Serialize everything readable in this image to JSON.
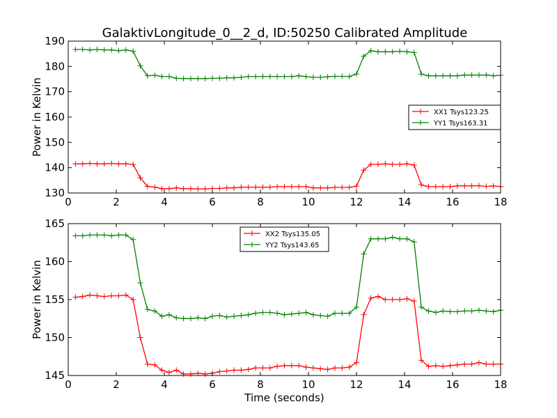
{
  "figure": {
    "title": "GalaktivLongitude_0__2_d, ID:50250 Calibrated Amplitude"
  },
  "chart_data": [
    {
      "type": "line",
      "title": "GalaktivLongitude_0__2_d, ID:50250 Calibrated Amplitude",
      "xlabel": "",
      "ylabel": "Power in Kelvin",
      "xlim": [
        0,
        18
      ],
      "ylim": [
        130,
        190
      ],
      "xticks": [
        0,
        2,
        4,
        6,
        8,
        10,
        12,
        14,
        16,
        18
      ],
      "yticks": [
        130,
        140,
        150,
        160,
        170,
        180,
        190
      ],
      "grid": false,
      "legend_position": "center-right",
      "x": [
        0.3,
        0.6,
        0.9,
        1.2,
        1.5,
        1.8,
        2.1,
        2.4,
        2.7,
        3.0,
        3.3,
        3.6,
        3.9,
        4.2,
        4.5,
        4.8,
        5.1,
        5.4,
        5.7,
        6.0,
        6.3,
        6.6,
        6.9,
        7.2,
        7.5,
        7.8,
        8.1,
        8.4,
        8.7,
        9.0,
        9.3,
        9.6,
        9.9,
        10.2,
        10.5,
        10.8,
        11.1,
        11.4,
        11.7,
        12.0,
        12.3,
        12.6,
        12.9,
        13.2,
        13.5,
        13.8,
        14.1,
        14.4,
        14.7,
        15.0,
        15.3,
        15.6,
        15.9,
        16.2,
        16.5,
        16.8,
        17.1,
        17.4,
        17.7,
        18.0
      ],
      "series": [
        {
          "name": "XX1 Tsys123.25",
          "color": "#ff0000",
          "values": [
            141.5,
            141.5,
            141.7,
            141.5,
            141.5,
            141.7,
            141.5,
            141.5,
            141.3,
            136.0,
            132.6,
            132.3,
            131.7,
            131.7,
            132.0,
            131.7,
            131.7,
            131.6,
            131.6,
            131.8,
            131.8,
            132.0,
            132.0,
            132.3,
            132.3,
            132.3,
            132.3,
            132.3,
            132.5,
            132.5,
            132.5,
            132.5,
            132.5,
            132.0,
            132.0,
            132.0,
            132.2,
            132.2,
            132.2,
            132.7,
            139.0,
            141.3,
            141.3,
            141.5,
            141.3,
            141.3,
            141.5,
            141.0,
            133.2,
            132.5,
            132.5,
            132.5,
            132.5,
            132.8,
            132.8,
            132.8,
            132.9,
            132.6,
            132.8,
            132.5
          ]
        },
        {
          "name": "YY1 Tsys163.31",
          "color": "#008000",
          "values": [
            186.7,
            186.7,
            186.5,
            186.7,
            186.5,
            186.5,
            186.2,
            186.5,
            186.0,
            180.2,
            176.3,
            176.5,
            176.0,
            176.0,
            175.3,
            175.2,
            175.2,
            175.2,
            175.2,
            175.3,
            175.3,
            175.5,
            175.5,
            175.7,
            176.0,
            176.0,
            176.0,
            176.0,
            176.0,
            176.0,
            176.0,
            176.3,
            176.0,
            175.7,
            175.7,
            175.9,
            176.1,
            176.1,
            176.0,
            177.0,
            184.0,
            186.2,
            185.8,
            185.8,
            185.8,
            186.0,
            185.8,
            185.5,
            177.0,
            176.3,
            176.3,
            176.3,
            176.3,
            176.3,
            176.6,
            176.6,
            176.6,
            176.6,
            176.3,
            176.5
          ]
        }
      ]
    },
    {
      "type": "line",
      "title": "",
      "xlabel": "Time (seconds)",
      "ylabel": "Power in Kelvin",
      "xlim": [
        0,
        18
      ],
      "ylim": [
        145,
        165
      ],
      "xticks": [
        0,
        2,
        4,
        6,
        8,
        10,
        12,
        14,
        16,
        18
      ],
      "yticks": [
        145,
        150,
        155,
        160,
        165
      ],
      "grid": false,
      "legend_position": "top-center",
      "x": [
        0.3,
        0.6,
        0.9,
        1.2,
        1.5,
        1.8,
        2.1,
        2.4,
        2.7,
        3.0,
        3.3,
        3.6,
        3.9,
        4.2,
        4.5,
        4.8,
        5.1,
        5.4,
        5.7,
        6.0,
        6.3,
        6.6,
        6.9,
        7.2,
        7.5,
        7.8,
        8.1,
        8.4,
        8.7,
        9.0,
        9.3,
        9.6,
        9.9,
        10.2,
        10.5,
        10.8,
        11.1,
        11.4,
        11.7,
        12.0,
        12.3,
        12.6,
        12.9,
        13.2,
        13.5,
        13.8,
        14.1,
        14.4,
        14.7,
        15.0,
        15.3,
        15.6,
        15.9,
        16.2,
        16.5,
        16.8,
        17.1,
        17.4,
        17.7,
        18.0
      ],
      "series": [
        {
          "name": "XX2 Tsys135.05",
          "color": "#ff0000",
          "values": [
            155.3,
            155.4,
            155.6,
            155.5,
            155.4,
            155.5,
            155.5,
            155.6,
            155.0,
            150.0,
            146.5,
            146.4,
            145.7,
            145.4,
            145.7,
            145.2,
            145.2,
            145.3,
            145.2,
            145.3,
            145.5,
            145.6,
            145.7,
            145.7,
            145.8,
            146.0,
            146.0,
            146.0,
            146.2,
            146.3,
            146.3,
            146.3,
            146.1,
            146.0,
            145.9,
            145.8,
            146.0,
            146.0,
            146.1,
            146.7,
            153.0,
            155.2,
            155.4,
            155.0,
            155.0,
            155.0,
            155.1,
            154.8,
            147.0,
            146.2,
            146.3,
            146.2,
            146.3,
            146.4,
            146.5,
            146.5,
            146.7,
            146.5,
            146.5,
            146.5
          ]
        },
        {
          "name": "YY2 Tsys143.65",
          "color": "#008000",
          "values": [
            163.4,
            163.4,
            163.5,
            163.5,
            163.5,
            163.4,
            163.5,
            163.5,
            162.9,
            157.2,
            153.7,
            153.5,
            152.8,
            153.0,
            152.6,
            152.5,
            152.5,
            152.6,
            152.5,
            152.8,
            152.9,
            152.7,
            152.8,
            152.9,
            153.0,
            153.2,
            153.3,
            153.3,
            153.2,
            153.0,
            153.1,
            153.2,
            153.3,
            153.0,
            152.9,
            152.8,
            153.2,
            153.2,
            153.2,
            154.0,
            161.0,
            163.0,
            163.0,
            163.0,
            163.2,
            163.0,
            163.0,
            162.6,
            154.0,
            153.5,
            153.3,
            153.5,
            153.4,
            153.4,
            153.5,
            153.5,
            153.6,
            153.5,
            153.4,
            153.6
          ]
        }
      ]
    }
  ]
}
